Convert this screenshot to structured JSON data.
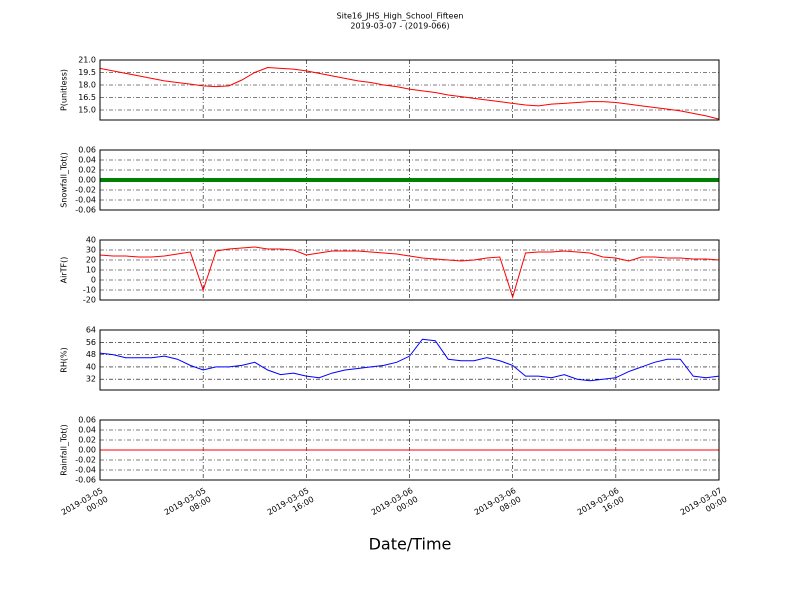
{
  "chart_data": [
    {
      "type": "line",
      "title": "Site16_JHS_High_School_Fifteen",
      "subtitle": "2019-03-07 - (2019-066)",
      "ylabel": "P(unitless)",
      "color": "#ff0000",
      "x": [
        "2019-03-05 00:00",
        "2019-03-05 01:00",
        "2019-03-05 02:00",
        "2019-03-05 03:00",
        "2019-03-05 04:00",
        "2019-03-05 05:00",
        "2019-03-05 06:00",
        "2019-03-05 07:00",
        "2019-03-05 08:00",
        "2019-03-05 09:00",
        "2019-03-05 10:00",
        "2019-03-05 11:00",
        "2019-03-05 12:00",
        "2019-03-05 13:00",
        "2019-03-05 14:00",
        "2019-03-05 15:00",
        "2019-03-05 16:00",
        "2019-03-05 17:00",
        "2019-03-05 18:00",
        "2019-03-05 19:00",
        "2019-03-05 20:00",
        "2019-03-05 21:00",
        "2019-03-05 22:00",
        "2019-03-05 23:00",
        "2019-03-06 00:00",
        "2019-03-06 01:00",
        "2019-03-06 02:00",
        "2019-03-06 03:00",
        "2019-03-06 04:00",
        "2019-03-06 05:00",
        "2019-03-06 06:00",
        "2019-03-06 07:00",
        "2019-03-06 08:00",
        "2019-03-06 09:00",
        "2019-03-06 10:00",
        "2019-03-06 11:00",
        "2019-03-06 12:00",
        "2019-03-06 13:00",
        "2019-03-06 14:00",
        "2019-03-06 15:00",
        "2019-03-06 16:00",
        "2019-03-06 17:00",
        "2019-03-06 18:00",
        "2019-03-06 19:00",
        "2019-03-06 20:00",
        "2019-03-06 21:00",
        "2019-03-06 22:00",
        "2019-03-06 23:00",
        "2019-03-07 00:00"
      ],
      "values": [
        20.0,
        19.7,
        19.4,
        19.1,
        18.8,
        18.5,
        18.3,
        18.1,
        17.9,
        17.8,
        17.9,
        18.6,
        19.5,
        20.1,
        20.0,
        19.9,
        19.7,
        19.4,
        19.1,
        18.8,
        18.5,
        18.3,
        18.0,
        17.8,
        17.5,
        17.3,
        17.1,
        16.8,
        16.6,
        16.4,
        16.2,
        16.0,
        15.8,
        15.6,
        15.5,
        15.7,
        15.8,
        15.9,
        16.0,
        16.0,
        15.9,
        15.7,
        15.5,
        15.3,
        15.1,
        14.9,
        14.6,
        14.3,
        13.9
      ],
      "xlim": [
        "2019-03-05 00:00",
        "2019-03-07 00:00"
      ],
      "xticks": [
        "2019-03-05 00:00",
        "2019-03-05 08:00",
        "2019-03-05 16:00",
        "2019-03-06 00:00",
        "2019-03-06 08:00",
        "2019-03-06 16:00",
        "2019-03-07 00:00"
      ],
      "ylim": [
        13.8,
        21
      ],
      "yticks": [
        {
          "value": 15,
          "label": "15.0"
        },
        16.5,
        {
          "value": 18,
          "label": "18.0"
        },
        19.5,
        {
          "value": 21,
          "label": "21.0"
        }
      ],
      "grid": true
    },
    {
      "type": "line",
      "ylabel": "Snowfall_Tot()",
      "color": "#008000",
      "x": [
        "2019-03-05 00:00",
        "2019-03-07 00:00"
      ],
      "values": [
        0,
        0
      ],
      "xlim": [
        "2019-03-05 00:00",
        "2019-03-07 00:00"
      ],
      "xticks": [
        "2019-03-05 00:00",
        "2019-03-05 08:00",
        "2019-03-05 16:00",
        "2019-03-06 00:00",
        "2019-03-06 08:00",
        "2019-03-06 16:00",
        "2019-03-07 00:00"
      ],
      "ylim": [
        -0.06,
        0.06
      ],
      "yticks": [
        -0.06,
        -0.04,
        -0.02,
        {
          "value": 0,
          "label": "0.00"
        },
        0.02,
        0.04,
        0.06
      ],
      "grid": true
    },
    {
      "type": "line",
      "ylabel": "AirTF()",
      "color": "#ff0000",
      "x": [
        "2019-03-05 00:00",
        "2019-03-05 01:00",
        "2019-03-05 02:00",
        "2019-03-05 03:00",
        "2019-03-05 04:00",
        "2019-03-05 05:00",
        "2019-03-05 06:00",
        "2019-03-05 07:00",
        "2019-03-05 08:00",
        "2019-03-05 09:00",
        "2019-03-05 10:00",
        "2019-03-05 11:00",
        "2019-03-05 12:00",
        "2019-03-05 13:00",
        "2019-03-05 14:00",
        "2019-03-05 15:00",
        "2019-03-05 16:00",
        "2019-03-05 17:00",
        "2019-03-05 18:00",
        "2019-03-05 19:00",
        "2019-03-05 20:00",
        "2019-03-05 21:00",
        "2019-03-05 22:00",
        "2019-03-05 23:00",
        "2019-03-06 00:00",
        "2019-03-06 01:00",
        "2019-03-06 02:00",
        "2019-03-06 03:00",
        "2019-03-06 04:00",
        "2019-03-06 05:00",
        "2019-03-06 06:00",
        "2019-03-06 07:00",
        "2019-03-06 08:00",
        "2019-03-06 09:00",
        "2019-03-06 10:00",
        "2019-03-06 11:00",
        "2019-03-06 12:00",
        "2019-03-06 13:00",
        "2019-03-06 14:00",
        "2019-03-06 15:00",
        "2019-03-06 16:00",
        "2019-03-06 17:00",
        "2019-03-06 18:00",
        "2019-03-06 19:00",
        "2019-03-06 20:00",
        "2019-03-06 21:00",
        "2019-03-06 22:00",
        "2019-03-06 23:00",
        "2019-03-07 00:00"
      ],
      "values": [
        25,
        24,
        24,
        23,
        23,
        24,
        26,
        28,
        -10,
        29,
        31,
        32,
        33,
        31,
        31,
        30,
        25,
        27,
        29,
        29,
        29,
        28,
        27,
        26,
        24,
        22,
        21,
        20,
        19,
        20,
        22,
        23,
        -17,
        27,
        28,
        28,
        29,
        28,
        27,
        23,
        22,
        19,
        23,
        23,
        22,
        22,
        21,
        21,
        20
      ],
      "xlim": [
        "2019-03-05 00:00",
        "2019-03-07 00:00"
      ],
      "xticks": [
        "2019-03-05 00:00",
        "2019-03-05 08:00",
        "2019-03-05 16:00",
        "2019-03-06 00:00",
        "2019-03-06 08:00",
        "2019-03-06 16:00",
        "2019-03-07 00:00"
      ],
      "ylim": [
        -20,
        40
      ],
      "yticks": [
        -20,
        -10,
        0,
        10,
        20,
        30,
        40
      ],
      "grid": true
    },
    {
      "type": "line",
      "ylabel": "RH(%)",
      "color": "#0000ff",
      "x": [
        "2019-03-05 00:00",
        "2019-03-05 01:00",
        "2019-03-05 02:00",
        "2019-03-05 03:00",
        "2019-03-05 04:00",
        "2019-03-05 05:00",
        "2019-03-05 06:00",
        "2019-03-05 07:00",
        "2019-03-05 08:00",
        "2019-03-05 09:00",
        "2019-03-05 10:00",
        "2019-03-05 11:00",
        "2019-03-05 12:00",
        "2019-03-05 13:00",
        "2019-03-05 14:00",
        "2019-03-05 15:00",
        "2019-03-05 16:00",
        "2019-03-05 17:00",
        "2019-03-05 18:00",
        "2019-03-05 19:00",
        "2019-03-05 20:00",
        "2019-03-05 21:00",
        "2019-03-05 22:00",
        "2019-03-05 23:00",
        "2019-03-06 00:00",
        "2019-03-06 01:00",
        "2019-03-06 02:00",
        "2019-03-06 03:00",
        "2019-03-06 04:00",
        "2019-03-06 05:00",
        "2019-03-06 06:00",
        "2019-03-06 07:00",
        "2019-03-06 08:00",
        "2019-03-06 09:00",
        "2019-03-06 10:00",
        "2019-03-06 11:00",
        "2019-03-06 12:00",
        "2019-03-06 13:00",
        "2019-03-06 14:00",
        "2019-03-06 15:00",
        "2019-03-06 16:00",
        "2019-03-06 17:00",
        "2019-03-06 18:00",
        "2019-03-06 19:00",
        "2019-03-06 20:00",
        "2019-03-06 21:00",
        "2019-03-06 22:00",
        "2019-03-06 23:00",
        "2019-03-07 00:00"
      ],
      "values": [
        49,
        48,
        46,
        46,
        46,
        47,
        45,
        41,
        38,
        40,
        40,
        41,
        43,
        38,
        35,
        36,
        34,
        33,
        36,
        38,
        39,
        40,
        41,
        43,
        47,
        58,
        57,
        45,
        44,
        44,
        46,
        44,
        41,
        34,
        34,
        33,
        35,
        32,
        31,
        32,
        33,
        37,
        40,
        43,
        45,
        45,
        34,
        33,
        34
      ],
      "xlim": [
        "2019-03-05 00:00",
        "2019-03-07 00:00"
      ],
      "xticks": [
        "2019-03-05 00:00",
        "2019-03-05 08:00",
        "2019-03-05 16:00",
        "2019-03-06 00:00",
        "2019-03-06 08:00",
        "2019-03-06 16:00",
        "2019-03-07 00:00"
      ],
      "ylim": [
        25,
        64
      ],
      "yticks": [
        32,
        40,
        48,
        56,
        64
      ],
      "grid": true
    },
    {
      "type": "line",
      "ylabel": "Rainfall_Tot()",
      "xlabel": "Date/Time",
      "color": "#ff0000",
      "x": [
        "2019-03-05 00:00",
        "2019-03-07 00:00"
      ],
      "values": [
        0,
        0
      ],
      "xlim": [
        "2019-03-05 00:00",
        "2019-03-07 00:00"
      ],
      "xticks": [
        "2019-03-05 00:00",
        "2019-03-05 08:00",
        "2019-03-05 16:00",
        "2019-03-06 00:00",
        "2019-03-06 08:00",
        "2019-03-06 16:00",
        "2019-03-07 00:00"
      ],
      "ylim": [
        -0.06,
        0.06
      ],
      "yticks": [
        -0.06,
        -0.04,
        -0.02,
        {
          "value": 0,
          "label": "0.00"
        },
        0.02,
        0.04,
        0.06
      ],
      "grid": true
    }
  ]
}
